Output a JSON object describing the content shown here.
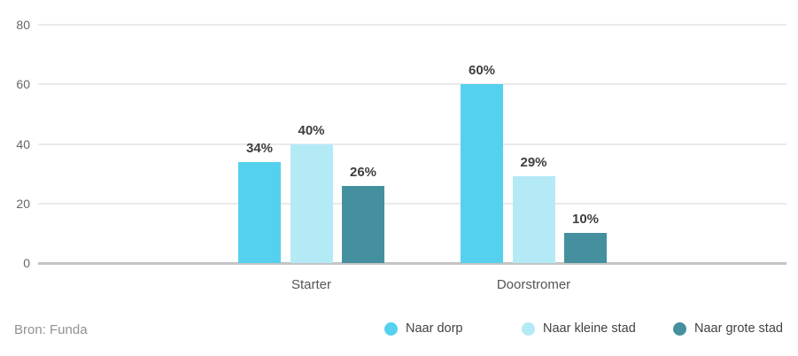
{
  "chart_data": {
    "type": "bar",
    "categories": [
      "Starter",
      "Doorstromer"
    ],
    "series": [
      {
        "name": "Naar dorp",
        "color": "#55d0ee",
        "values": [
          34,
          60
        ]
      },
      {
        "name": "Naar kleine stad",
        "color": "#b4eaf6",
        "values": [
          40,
          29
        ]
      },
      {
        "name": "Naar grote stad",
        "color": "#45909f",
        "values": [
          26,
          10
        ]
      }
    ],
    "value_suffix": "%",
    "data_labels": [
      "34%",
      "40%",
      "26%",
      "60%",
      "29%",
      "10%"
    ],
    "title": "",
    "xlabel": "",
    "ylabel": "",
    "ylim": [
      0,
      80
    ],
    "yticks": [
      0,
      20,
      40,
      60,
      80
    ],
    "grid": true,
    "legend_position": "bottom-right"
  },
  "footer": {
    "source": "Bron: Funda"
  },
  "colors": {
    "grid": "#eaeaea",
    "axis": "#c4c4c4",
    "tick_text": "#666666",
    "category_text": "#555555",
    "value_text": "#3e3e3e",
    "legend_text": "#424242",
    "source_text": "#919191",
    "background": "#ffffff"
  }
}
